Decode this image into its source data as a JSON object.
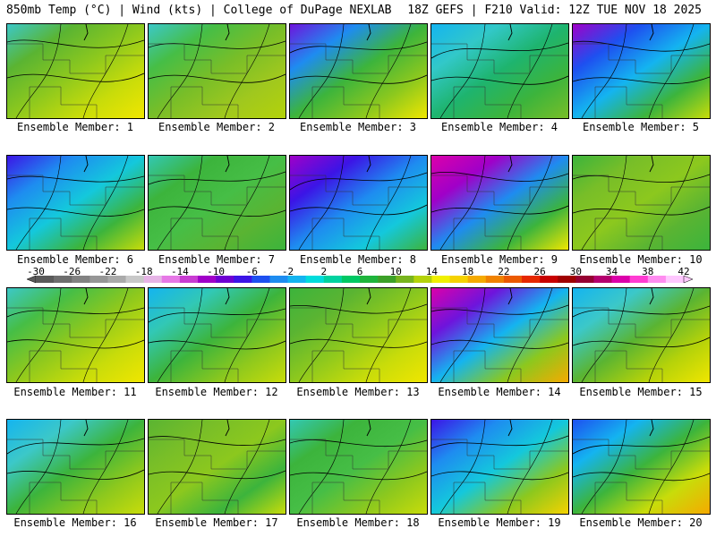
{
  "header": {
    "left_title": "850mb Temp (°C) | Wind (kts) | College of DuPage NEXLAB",
    "right_title": "18Z GEFS | F210 Valid: 12Z TUE NOV 18 2025"
  },
  "members": [
    {
      "label": "Ensemble Member: 1"
    },
    {
      "label": "Ensemble Member: 2"
    },
    {
      "label": "Ensemble Member: 3"
    },
    {
      "label": "Ensemble Member: 4"
    },
    {
      "label": "Ensemble Member: 5"
    },
    {
      "label": "Ensemble Member: 6"
    },
    {
      "label": "Ensemble Member: 7"
    },
    {
      "label": "Ensemble Member: 8"
    },
    {
      "label": "Ensemble Member: 9"
    },
    {
      "label": "Ensemble Member: 10"
    },
    {
      "label": "Ensemble Member: 11"
    },
    {
      "label": "Ensemble Member: 12"
    },
    {
      "label": "Ensemble Member: 13"
    },
    {
      "label": "Ensemble Member: 14"
    },
    {
      "label": "Ensemble Member: 15"
    },
    {
      "label": "Ensemble Member: 16"
    },
    {
      "label": "Ensemble Member: 17"
    },
    {
      "label": "Ensemble Member: 18"
    },
    {
      "label": "Ensemble Member: 19"
    },
    {
      "label": "Ensemble Member: 20"
    }
  ],
  "colorbar": {
    "labels": [
      "-30",
      "-26",
      "-22",
      "-18",
      "-14",
      "-10",
      "-6",
      "-2",
      "2",
      "6",
      "10",
      "14",
      "18",
      "22",
      "26",
      "30",
      "34",
      "38",
      "42"
    ],
    "colors": [
      "#5a5a5a",
      "#6e6e6e",
      "#828282",
      "#969696",
      "#aaaaaa",
      "#c8c8c8",
      "#e6b4e6",
      "#e678e6",
      "#c83cd2",
      "#a000c8",
      "#6e00d2",
      "#3c14e6",
      "#1e50f0",
      "#1e8cf0",
      "#14b4f0",
      "#00dcdc",
      "#00d2a0",
      "#00c864",
      "#1eb43c",
      "#3ca028",
      "#78b41e",
      "#b4d20a",
      "#f0f000",
      "#f5d200",
      "#f5aa00",
      "#f08200",
      "#eb5a00",
      "#e62800",
      "#c80000",
      "#a00000",
      "#960032",
      "#b4006e",
      "#dc00aa",
      "#ff3cd2",
      "#ff8cf0",
      "#ffc8ff"
    ]
  }
}
